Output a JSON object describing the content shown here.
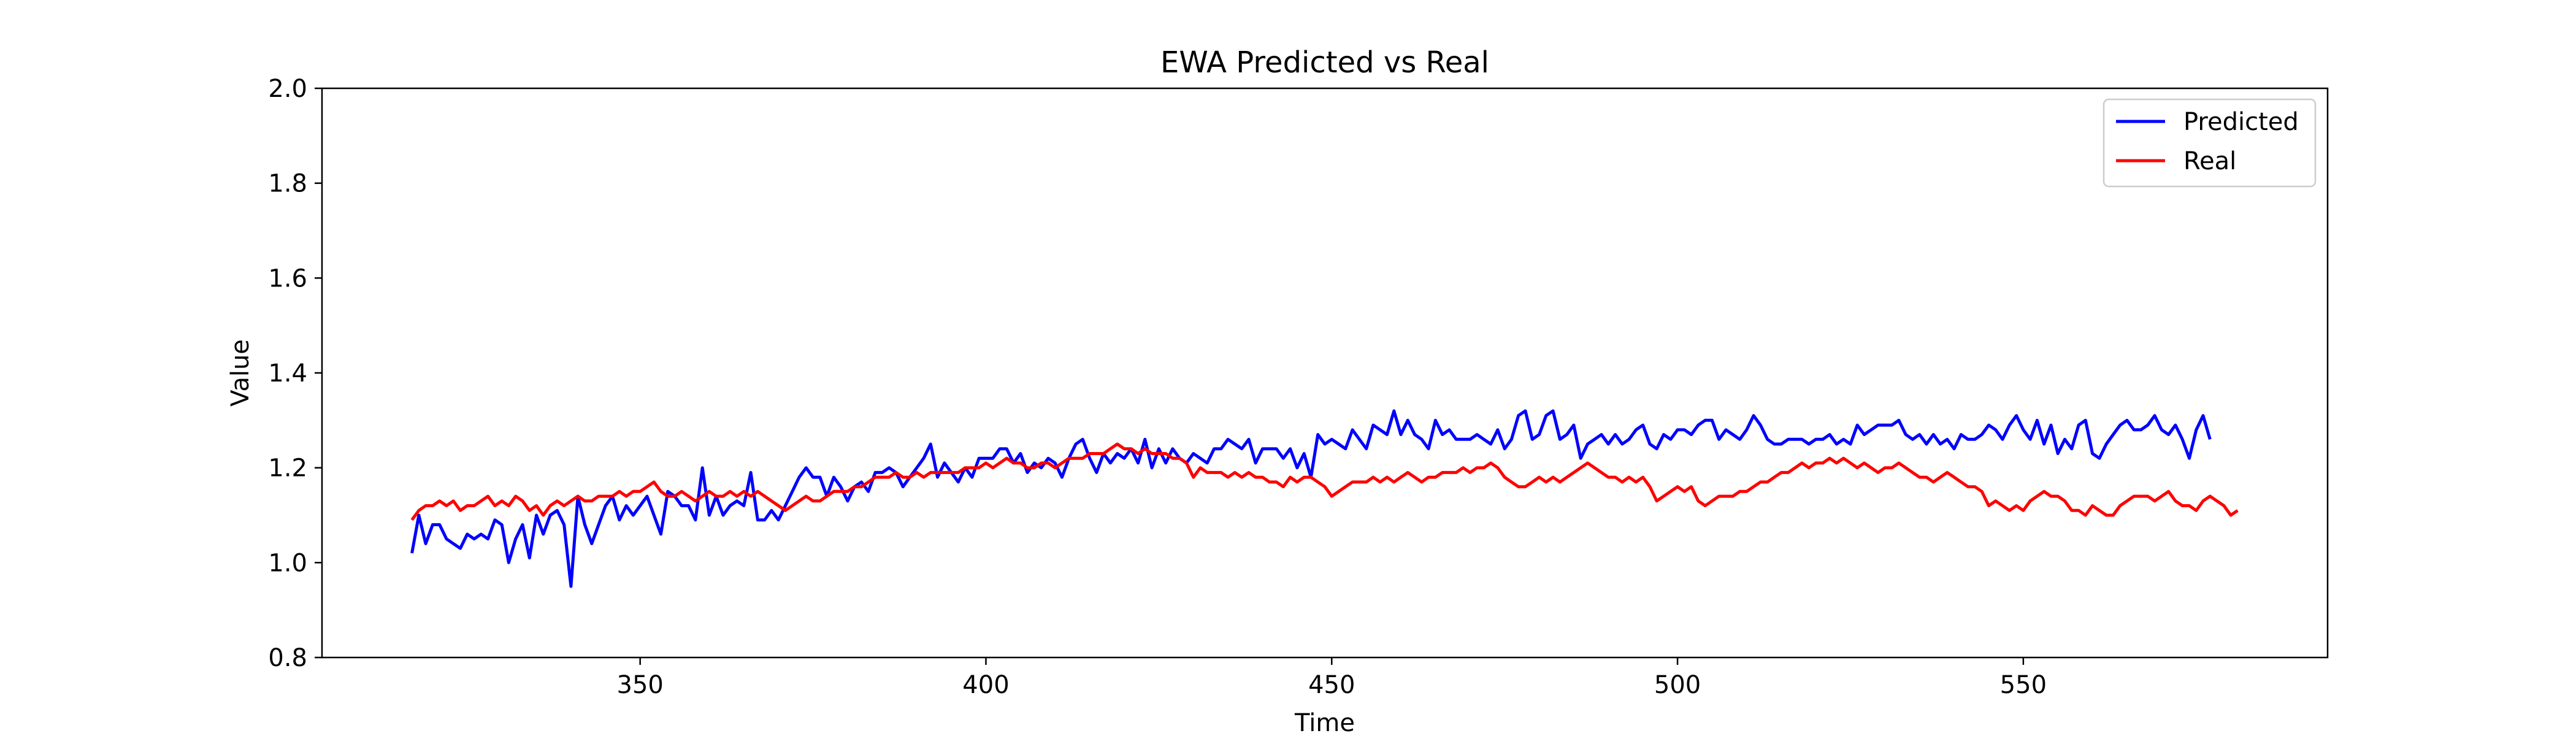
{
  "chart_data": {
    "type": "line",
    "title": "EWA Predicted vs Real",
    "xlabel": "Time",
    "ylabel": "Value",
    "xlim": [
      304,
      594
    ],
    "ylim": [
      0.8,
      2.0
    ],
    "xticks": [
      350,
      400,
      450,
      500,
      550
    ],
    "yticks": [
      0.8,
      1.0,
      1.2,
      1.4,
      1.6,
      1.8,
      2.0
    ],
    "xtick_labels": [
      "350",
      "400",
      "450",
      "500",
      "550"
    ],
    "ytick_labels": [
      "0.8",
      "1.0",
      "1.2",
      "1.4",
      "1.6",
      "1.8",
      "2.0"
    ],
    "grid": false,
    "legend_position": "top-right",
    "series": [
      {
        "name": "Predicted",
        "color": "#0000ff",
        "x_start": 317,
        "x_step": 1,
        "values": [
          1.02,
          1.1,
          1.04,
          1.08,
          1.08,
          1.05,
          1.04,
          1.03,
          1.06,
          1.05,
          1.06,
          1.05,
          1.09,
          1.08,
          1.0,
          1.05,
          1.08,
          1.01,
          1.1,
          1.06,
          1.1,
          1.11,
          1.08,
          0.95,
          1.14,
          1.08,
          1.04,
          1.08,
          1.12,
          1.14,
          1.09,
          1.12,
          1.1,
          1.12,
          1.14,
          1.1,
          1.06,
          1.15,
          1.14,
          1.12,
          1.12,
          1.09,
          1.2,
          1.1,
          1.14,
          1.1,
          1.12,
          1.13,
          1.12,
          1.19,
          1.09,
          1.09,
          1.11,
          1.09,
          1.12,
          1.15,
          1.18,
          1.2,
          1.18,
          1.18,
          1.14,
          1.18,
          1.16,
          1.13,
          1.16,
          1.17,
          1.15,
          1.19,
          1.19,
          1.2,
          1.19,
          1.16,
          1.18,
          1.2,
          1.22,
          1.25,
          1.18,
          1.21,
          1.19,
          1.17,
          1.2,
          1.18,
          1.22,
          1.22,
          1.22,
          1.24,
          1.24,
          1.21,
          1.23,
          1.19,
          1.21,
          1.2,
          1.22,
          1.21,
          1.18,
          1.22,
          1.25,
          1.26,
          1.22,
          1.19,
          1.23,
          1.21,
          1.23,
          1.22,
          1.24,
          1.21,
          1.26,
          1.2,
          1.24,
          1.21,
          1.24,
          1.22,
          1.21,
          1.23,
          1.22,
          1.21,
          1.24,
          1.24,
          1.26,
          1.25,
          1.24,
          1.26,
          1.21,
          1.24,
          1.24,
          1.24,
          1.22,
          1.24,
          1.2,
          1.23,
          1.18,
          1.27,
          1.25,
          1.26,
          1.25,
          1.24,
          1.28,
          1.26,
          1.24,
          1.29,
          1.28,
          1.27,
          1.32,
          1.27,
          1.3,
          1.27,
          1.26,
          1.24,
          1.3,
          1.27,
          1.28,
          1.26,
          1.26,
          1.26,
          1.27,
          1.26,
          1.25,
          1.28,
          1.24,
          1.26,
          1.31,
          1.32,
          1.26,
          1.27,
          1.31,
          1.32,
          1.26,
          1.27,
          1.29,
          1.22,
          1.25,
          1.26,
          1.27,
          1.25,
          1.27,
          1.25,
          1.26,
          1.28,
          1.29,
          1.25,
          1.24,
          1.27,
          1.26,
          1.28,
          1.28,
          1.27,
          1.29,
          1.3,
          1.3,
          1.26,
          1.28,
          1.27,
          1.26,
          1.28,
          1.31,
          1.29,
          1.26,
          1.25,
          1.25,
          1.26,
          1.26,
          1.26,
          1.25,
          1.26,
          1.26,
          1.27,
          1.25,
          1.26,
          1.25,
          1.29,
          1.27,
          1.28,
          1.29,
          1.29,
          1.29,
          1.3,
          1.27,
          1.26,
          1.27,
          1.25,
          1.27,
          1.25,
          1.26,
          1.24,
          1.27,
          1.26,
          1.26,
          1.27,
          1.29,
          1.28,
          1.26,
          1.29,
          1.31,
          1.28,
          1.26,
          1.3,
          1.25,
          1.29,
          1.23,
          1.26,
          1.24,
          1.29,
          1.3,
          1.23,
          1.22,
          1.25,
          1.27,
          1.29,
          1.3,
          1.28,
          1.28,
          1.29,
          1.31,
          1.28,
          1.27,
          1.29,
          1.26,
          1.22,
          1.28,
          1.31,
          1.26
        ]
      },
      {
        "name": "Real",
        "color": "#ff0000",
        "x_start": 317,
        "x_step": 1,
        "values": [
          1.09,
          1.11,
          1.12,
          1.12,
          1.13,
          1.12,
          1.13,
          1.11,
          1.12,
          1.12,
          1.13,
          1.14,
          1.12,
          1.13,
          1.12,
          1.14,
          1.13,
          1.11,
          1.12,
          1.1,
          1.12,
          1.13,
          1.12,
          1.13,
          1.14,
          1.13,
          1.13,
          1.14,
          1.14,
          1.14,
          1.15,
          1.14,
          1.15,
          1.15,
          1.16,
          1.17,
          1.15,
          1.14,
          1.14,
          1.15,
          1.14,
          1.13,
          1.14,
          1.15,
          1.14,
          1.14,
          1.15,
          1.14,
          1.15,
          1.14,
          1.15,
          1.14,
          1.13,
          1.12,
          1.11,
          1.12,
          1.13,
          1.14,
          1.13,
          1.13,
          1.14,
          1.15,
          1.15,
          1.15,
          1.16,
          1.16,
          1.17,
          1.18,
          1.18,
          1.18,
          1.19,
          1.18,
          1.18,
          1.19,
          1.18,
          1.19,
          1.19,
          1.19,
          1.19,
          1.19,
          1.2,
          1.2,
          1.2,
          1.21,
          1.2,
          1.21,
          1.22,
          1.21,
          1.21,
          1.2,
          1.2,
          1.21,
          1.21,
          1.2,
          1.21,
          1.22,
          1.22,
          1.22,
          1.23,
          1.23,
          1.23,
          1.24,
          1.25,
          1.24,
          1.24,
          1.23,
          1.24,
          1.23,
          1.23,
          1.23,
          1.22,
          1.22,
          1.21,
          1.18,
          1.2,
          1.19,
          1.19,
          1.19,
          1.18,
          1.19,
          1.18,
          1.19,
          1.18,
          1.18,
          1.17,
          1.17,
          1.16,
          1.18,
          1.17,
          1.18,
          1.18,
          1.17,
          1.16,
          1.14,
          1.15,
          1.16,
          1.17,
          1.17,
          1.17,
          1.18,
          1.17,
          1.18,
          1.17,
          1.18,
          1.19,
          1.18,
          1.17,
          1.18,
          1.18,
          1.19,
          1.19,
          1.19,
          1.2,
          1.19,
          1.2,
          1.2,
          1.21,
          1.2,
          1.18,
          1.17,
          1.16,
          1.16,
          1.17,
          1.18,
          1.17,
          1.18,
          1.17,
          1.18,
          1.19,
          1.2,
          1.21,
          1.2,
          1.19,
          1.18,
          1.18,
          1.17,
          1.18,
          1.17,
          1.18,
          1.16,
          1.13,
          1.14,
          1.15,
          1.16,
          1.15,
          1.16,
          1.13,
          1.12,
          1.13,
          1.14,
          1.14,
          1.14,
          1.15,
          1.15,
          1.16,
          1.17,
          1.17,
          1.18,
          1.19,
          1.19,
          1.2,
          1.21,
          1.2,
          1.21,
          1.21,
          1.22,
          1.21,
          1.22,
          1.21,
          1.2,
          1.21,
          1.2,
          1.19,
          1.2,
          1.2,
          1.21,
          1.2,
          1.19,
          1.18,
          1.18,
          1.17,
          1.18,
          1.19,
          1.18,
          1.17,
          1.16,
          1.16,
          1.15,
          1.12,
          1.13,
          1.12,
          1.11,
          1.12,
          1.11,
          1.13,
          1.14,
          1.15,
          1.14,
          1.14,
          1.13,
          1.11,
          1.11,
          1.1,
          1.12,
          1.11,
          1.1,
          1.1,
          1.12,
          1.13,
          1.14,
          1.14,
          1.14,
          1.13,
          1.14,
          1.15,
          1.13,
          1.12,
          1.12,
          1.11,
          1.13,
          1.14,
          1.13,
          1.12,
          1.1,
          1.11
        ]
      }
    ]
  }
}
